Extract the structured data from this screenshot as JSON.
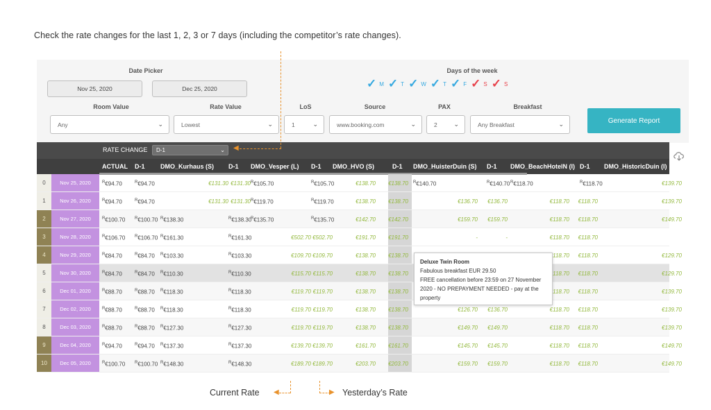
{
  "instruction": "Check the rate changes for the last 1, 2, 3 or 7 days (including the competitor’s rate changes).",
  "filters": {
    "date_picker_label": "Date Picker",
    "date_from": "Nov 25, 2020",
    "date_to": "Dec 25, 2020",
    "days_label": "Days of the week",
    "days": [
      {
        "label": "M",
        "color": "#36a9e0"
      },
      {
        "label": "T",
        "color": "#36a9e0"
      },
      {
        "label": "W",
        "color": "#36a9e0"
      },
      {
        "label": "T",
        "color": "#36a9e0"
      },
      {
        "label": "F",
        "color": "#36a9e0"
      },
      {
        "label": "S",
        "color": "#e8414a"
      },
      {
        "label": "S",
        "color": "#e8414a"
      }
    ],
    "room_value_label": "Room Value",
    "room_value": "Any",
    "rate_value_label": "Rate Value",
    "rate_value": "Lowest",
    "los_label": "LoS",
    "los": "1",
    "source_label": "Source",
    "source": "www.booking.com",
    "pax_label": "PAX",
    "pax": "2",
    "breakfast_label": "Breakfast",
    "breakfast": "Any Breakfast",
    "generate_label": "Generate Report"
  },
  "table": {
    "rate_change_label": "RATE CHANGE",
    "rate_change_value": "D-1",
    "columns": [
      "ACTUAL",
      "D-1",
      "DMO_Kurhaus (S)",
      "D-1",
      "DMO_Vesper (L)",
      "D-1",
      "DMO_HVO (S)",
      "D-1",
      "DMO_HuisterDuin (S)",
      "D-1",
      "DMO_BeachHotelN (I)",
      "D-1",
      "DMO_HistoricDuin (I)"
    ],
    "rows": [
      {
        "idx": "0",
        "date": "Nov 25, 2020",
        "cells": [
          "€94.70",
          "€94.70",
          "€131.30",
          "€131.30",
          "€105.70",
          "€105.70",
          "€138.70",
          "€138.70",
          "€140.70",
          "€140.70",
          "€118.70",
          "€118.70",
          "€139.70"
        ]
      },
      {
        "idx": "1",
        "date": "Nov 26, 2020",
        "cells": [
          "€94.70",
          "€94.70",
          "€131.30",
          "€131.30",
          "€119.70",
          "€119.70",
          "€138.70",
          "€138.70",
          "€136.70",
          "€136.70",
          "€118.70",
          "€118.70",
          "€139.70"
        ]
      },
      {
        "idx": "2",
        "date": "Nov 27, 2020",
        "cells": [
          "€100.70",
          "€100.70",
          "€138.30",
          "€138.30",
          "€135.70",
          "€135.70",
          "€142.70",
          "€142.70",
          "€159.70",
          "€159.70",
          "€118.70",
          "€118.70",
          "€149.70"
        ]
      },
      {
        "idx": "3",
        "date": "Nov 28, 2020",
        "cells": [
          "€106.70",
          "€106.70",
          "€161.30",
          "€161.30",
          "€502.70",
          "€502.70",
          "€191.70",
          "€191.70",
          "-",
          "-",
          "€118.70",
          "€118.70",
          ""
        ]
      },
      {
        "idx": "4",
        "date": "Nov 29, 2020",
        "cells": [
          "€84.70",
          "€84.70",
          "€103.30",
          "€103.30",
          "€109.70",
          "€109.70",
          "€138.70",
          "€138.70",
          "",
          "",
          "€118.70",
          "€118.70",
          "€129.70"
        ]
      },
      {
        "idx": "5",
        "date": "Nov 30, 2020",
        "cells": [
          "€84.70",
          "€84.70",
          "€110.30",
          "€110.30",
          "€115.70",
          "€115.70",
          "€138.70",
          "€138.70",
          "",
          "",
          "€118.70",
          "€118.70",
          "€129.70"
        ]
      },
      {
        "idx": "6",
        "date": "Dec 01, 2020",
        "cells": [
          "€88.70",
          "€88.70",
          "€118.30",
          "€118.30",
          "€119.70",
          "€119.70",
          "€138.70",
          "€138.70",
          "",
          "",
          "€118.70",
          "€118.70",
          "€139.70"
        ]
      },
      {
        "idx": "7",
        "date": "Dec 02, 2020",
        "cells": [
          "€88.70",
          "€88.70",
          "€118.30",
          "€118.30",
          "€119.70",
          "€119.70",
          "€138.70",
          "€138.70",
          "€126.70",
          "€136.70",
          "€118.70",
          "€118.70",
          "€139.70"
        ]
      },
      {
        "idx": "8",
        "date": "Dec 03, 2020",
        "cells": [
          "€88.70",
          "€88.70",
          "€127.30",
          "€127.30",
          "€119.70",
          "€119.70",
          "€138.70",
          "€138.70",
          "€149.70",
          "€149.70",
          "€118.70",
          "€118.70",
          "€139.70"
        ]
      },
      {
        "idx": "9",
        "date": "Dec 04, 2020",
        "cells": [
          "€94.70",
          "€94.70",
          "€137.30",
          "€137.30",
          "€139.70",
          "€139.70",
          "€161.70",
          "€161.70",
          "€145.70",
          "€145.70",
          "€118.70",
          "€118.70",
          "€149.70"
        ]
      },
      {
        "idx": "10",
        "date": "Dec 05, 2020",
        "cells": [
          "€100.70",
          "€100.70",
          "€148.30",
          "€148.30",
          "€189.70",
          "€189.70",
          "€203.70",
          "€203.70",
          "€159.70",
          "€159.70",
          "€118.70",
          "€118.70",
          "€149.70"
        ]
      }
    ],
    "superscript": "R"
  },
  "tooltip": {
    "title": "Deluxe Twin Room",
    "line1": "Fabulous breakfast EUR 29.50",
    "line2": "FREE cancellation before 23:59 on 27 November",
    "line3": "2020 - NO PREPAYMENT NEEDED - pay at the",
    "line4": "property"
  },
  "captions": {
    "current_rate": "Current Rate",
    "yesterday_rate": "Yesterday’s Rate"
  },
  "colors": {
    "accent": "#36b4c3",
    "date_cell": "#c392e0",
    "olive": "#8f8254",
    "green_value": "#92b83c",
    "annotation": "#e8922c"
  }
}
